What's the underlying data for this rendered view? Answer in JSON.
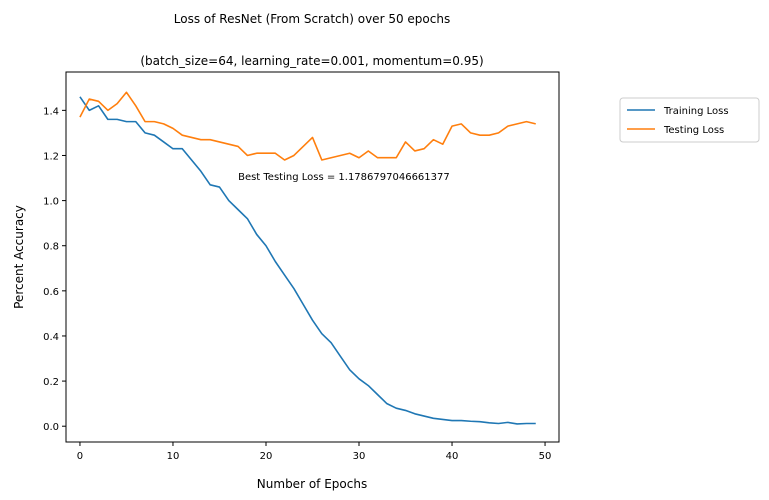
{
  "chart_data": {
    "type": "line",
    "title": "Loss of ResNet (From Scratch) over 50 epochs",
    "subtitle": "(batch_size=64, learning_rate=0.001, momentum=0.95)",
    "xlabel": "Number of Epochs",
    "ylabel": "Percent Accuracy",
    "xlim": [
      -1.5,
      51.5
    ],
    "ylim": [
      -0.07,
      1.57
    ],
    "x_ticks": [
      0,
      10,
      20,
      30,
      40,
      50
    ],
    "y_ticks": [
      0.0,
      0.2,
      0.4,
      0.6,
      0.8,
      1.0,
      1.2,
      1.4
    ],
    "grid": false,
    "legend_position": "outside-top-right",
    "annotation": "Best Testing Loss = 1.1786797046661377",
    "annotation_anchor": {
      "x": 17,
      "y": 1.11
    },
    "x": [
      0,
      1,
      2,
      3,
      4,
      5,
      6,
      7,
      8,
      9,
      10,
      11,
      12,
      13,
      14,
      15,
      16,
      17,
      18,
      19,
      20,
      21,
      22,
      23,
      24,
      25,
      26,
      27,
      28,
      29,
      30,
      31,
      32,
      33,
      34,
      35,
      36,
      37,
      38,
      39,
      40,
      41,
      42,
      43,
      44,
      45,
      46,
      47,
      48,
      49
    ],
    "series": [
      {
        "name": "Training Loss",
        "color": "#1f77b4",
        "values": [
          1.46,
          1.4,
          1.42,
          1.36,
          1.36,
          1.35,
          1.35,
          1.3,
          1.29,
          1.26,
          1.23,
          1.23,
          1.18,
          1.13,
          1.07,
          1.06,
          1.0,
          0.96,
          0.92,
          0.85,
          0.8,
          0.73,
          0.67,
          0.61,
          0.54,
          0.47,
          0.41,
          0.37,
          0.31,
          0.25,
          0.21,
          0.18,
          0.14,
          0.1,
          0.08,
          0.07,
          0.055,
          0.045,
          0.035,
          0.03,
          0.025,
          0.025,
          0.022,
          0.02,
          0.015,
          0.012,
          0.017,
          0.01,
          0.012,
          0.012
        ]
      },
      {
        "name": "Testing Loss",
        "color": "#ff7f0e",
        "values": [
          1.37,
          1.45,
          1.44,
          1.4,
          1.43,
          1.48,
          1.42,
          1.35,
          1.35,
          1.34,
          1.32,
          1.29,
          1.28,
          1.27,
          1.27,
          1.26,
          1.25,
          1.24,
          1.2,
          1.21,
          1.21,
          1.21,
          1.18,
          1.2,
          1.24,
          1.28,
          1.18,
          1.19,
          1.2,
          1.21,
          1.19,
          1.22,
          1.19,
          1.19,
          1.19,
          1.26,
          1.22,
          1.23,
          1.27,
          1.25,
          1.33,
          1.34,
          1.3,
          1.29,
          1.29,
          1.3,
          1.33,
          1.34,
          1.35,
          1.34
        ]
      }
    ]
  }
}
